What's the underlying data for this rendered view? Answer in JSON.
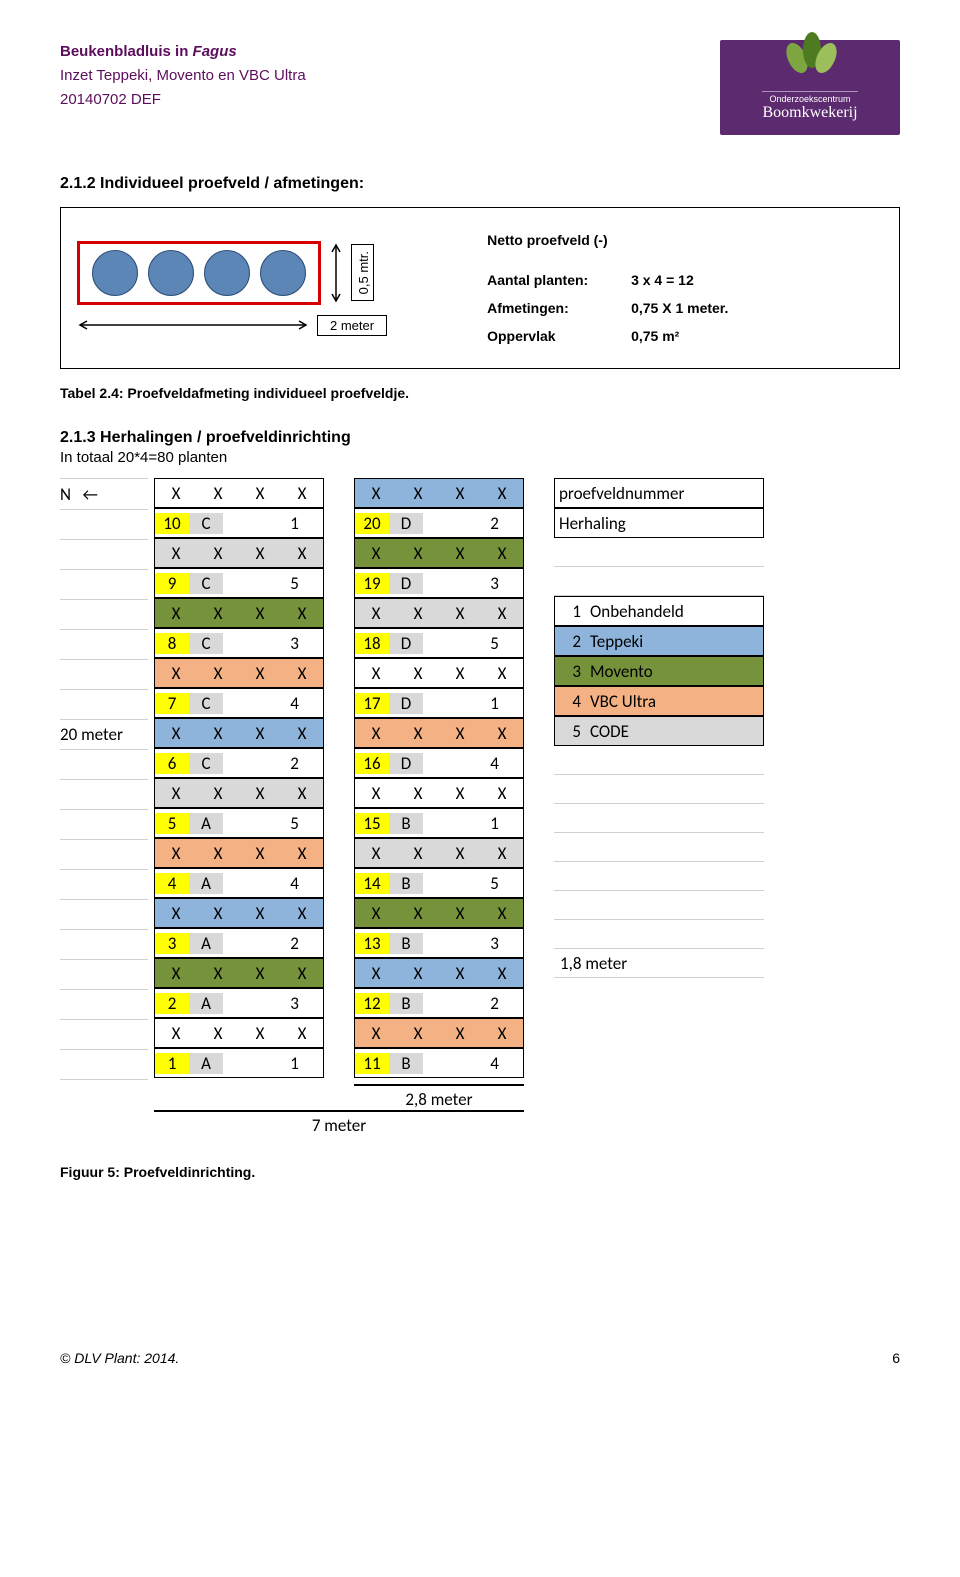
{
  "header": {
    "line1a": "Beukenbladluis in ",
    "line1b": "Fagus",
    "line2": "Inzet Teppeki, Movento en VBC Ultra",
    "line3": "20140702 DEF"
  },
  "logo": {
    "small": "Onderzoekscentrum",
    "big": "Boomkwekerij"
  },
  "section": "2.1.2  Individueel proefveld / afmetingen:",
  "dim_05": "0,5 mtr.",
  "two_meter": "2 meter",
  "info": {
    "title": "Netto proefveld (-)",
    "rows": [
      {
        "lab": "Aantal planten:",
        "val": "3 x 4 = 12"
      },
      {
        "lab": "Afmetingen:",
        "val": "0,75 X 1 meter."
      },
      {
        "lab": "Oppervlak",
        "val": "0,75 m²"
      }
    ]
  },
  "caption": "Tabel 2.4: Proefveldafmeting individueel proefveldje.",
  "sub_title": "2.1.3  Herhalingen / proefveldinrichting",
  "sub_line": "In totaal 20*4=80 planten",
  "left_n": "N   ←",
  "left_20m": "20 meter",
  "colA": [
    {
      "n": "10",
      "r": "C",
      "t": "1",
      "bg": "bg-white"
    },
    {
      "n": "9",
      "r": "C",
      "t": "5",
      "bg": "bg-grey"
    },
    {
      "n": "8",
      "r": "C",
      "t": "3",
      "bg": "bg-green"
    },
    {
      "n": "7",
      "r": "C",
      "t": "4",
      "bg": "bg-orange"
    },
    {
      "n": "6",
      "r": "C",
      "t": "2",
      "bg": "bg-blue"
    },
    {
      "n": "5",
      "r": "A",
      "t": "5",
      "bg": "bg-grey"
    },
    {
      "n": "4",
      "r": "A",
      "t": "4",
      "bg": "bg-orange"
    },
    {
      "n": "3",
      "r": "A",
      "t": "2",
      "bg": "bg-blue"
    },
    {
      "n": "2",
      "r": "A",
      "t": "3",
      "bg": "bg-green"
    },
    {
      "n": "1",
      "r": "A",
      "t": "1",
      "bg": "bg-white"
    }
  ],
  "colB": [
    {
      "n": "20",
      "r": "D",
      "t": "2",
      "bg": "bg-blue"
    },
    {
      "n": "19",
      "r": "D",
      "t": "3",
      "bg": "bg-green"
    },
    {
      "n": "18",
      "r": "D",
      "t": "5",
      "bg": "bg-grey"
    },
    {
      "n": "17",
      "r": "D",
      "t": "1",
      "bg": "bg-white"
    },
    {
      "n": "16",
      "r": "D",
      "t": "4",
      "bg": "bg-orange"
    },
    {
      "n": "15",
      "r": "B",
      "t": "1",
      "bg": "bg-white"
    },
    {
      "n": "14",
      "r": "B",
      "t": "5",
      "bg": "bg-grey"
    },
    {
      "n": "13",
      "r": "B",
      "t": "3",
      "bg": "bg-green"
    },
    {
      "n": "12",
      "r": "B",
      "t": "2",
      "bg": "bg-blue"
    },
    {
      "n": "11",
      "r": "B",
      "t": "4",
      "bg": "bg-orange"
    }
  ],
  "legend_top": [
    {
      "bg": "background:#ffff00",
      "txt": "proefveldnummer"
    },
    {
      "bg": "background:#d9d9d9",
      "txt": "Herhaling"
    }
  ],
  "legend": [
    {
      "n": "1",
      "txt": "Onbehandeld",
      "cls": "bg-white"
    },
    {
      "n": "2",
      "txt": "Teppeki",
      "cls": "bg-blue"
    },
    {
      "n": "3",
      "txt": "Movento",
      "cls": "bg-green"
    },
    {
      "n": "4",
      "txt": "VBC Ultra",
      "cls": "bg-orange"
    },
    {
      "n": "5",
      "txt": "CODE",
      "cls": "bg-grey"
    }
  ],
  "dims": {
    "right": "1,8 meter",
    "mid": "2,8 meter",
    "bottom": "7 meter"
  },
  "fig_caption": "Figuur 5: Proefveldinrichting.",
  "footer": {
    "left": "© DLV Plant: 2014.",
    "page": "6"
  },
  "X": "X"
}
